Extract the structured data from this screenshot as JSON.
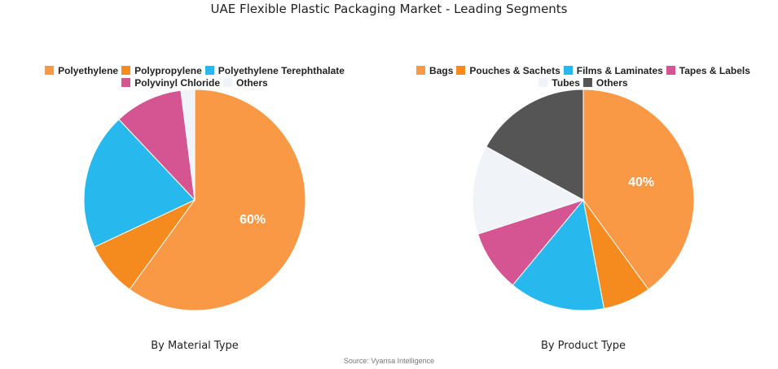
{
  "title": "UAE Flexible Plastic Packaging Market - Leading Segments",
  "source": "Source: Vyansa Intelligence",
  "chart_data": [
    {
      "type": "pie",
      "subtitle": "By Material Type",
      "legend_position": "top",
      "categories": [
        "Polyethylene",
        "Polypropylene",
        "Polyethylene Terephthalate",
        "Polyvinyl Chloride",
        "Others"
      ],
      "values": [
        60,
        8,
        20,
        10,
        2
      ],
      "colors": [
        "#F99845",
        "#F58A1F",
        "#27B9ED",
        "#D45592",
        "#F0F3F7"
      ],
      "data_labels": [
        "60%",
        "",
        "",
        "",
        ""
      ]
    },
    {
      "type": "pie",
      "subtitle": "By Product Type",
      "legend_position": "top",
      "categories": [
        "Bags",
        "Pouches & Sachets",
        "Films & Laminates",
        "Tapes & Labels",
        "Tubes",
        "Others"
      ],
      "values": [
        40,
        7,
        14,
        9,
        13,
        17
      ],
      "colors": [
        "#F99845",
        "#F58A1F",
        "#27B9ED",
        "#D45592",
        "#F0F3F7",
        "#555555"
      ],
      "data_labels": [
        "40%",
        "",
        "",
        "",
        "",
        ""
      ]
    }
  ]
}
